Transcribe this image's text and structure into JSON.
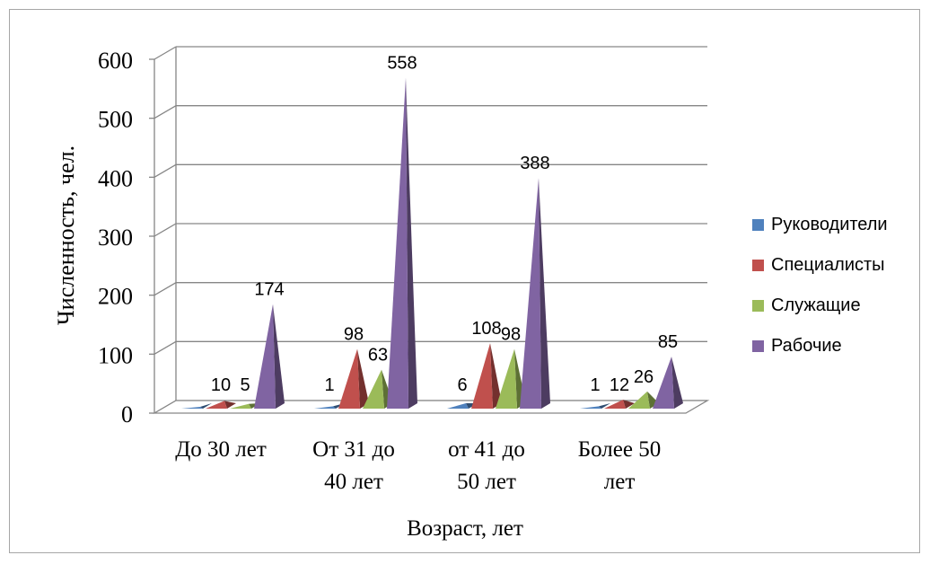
{
  "chart_data": {
    "type": "bar",
    "bar_shape": "pyramid-3d",
    "categories": [
      "До 30 лет",
      "От 31 до 40 лет",
      "от 41 до 50 лет",
      "Более 50 лет"
    ],
    "series": [
      {
        "name": "Руководители",
        "color": "#4f81bd",
        "values": [
          0,
          1,
          6,
          1
        ],
        "labels": [
          "",
          "1",
          "6",
          "1"
        ]
      },
      {
        "name": "Специалисты",
        "color": "#c0504d",
        "values": [
          10,
          98,
          108,
          12
        ],
        "labels": [
          "10",
          "98",
          "108",
          "12"
        ]
      },
      {
        "name": "Служащие",
        "color": "#9bbb59",
        "values": [
          5,
          63,
          98,
          26
        ],
        "labels": [
          "5",
          "63",
          "98",
          "26"
        ]
      },
      {
        "name": "Рабочие",
        "color": "#8064a2",
        "values": [
          174,
          558,
          388,
          85
        ],
        "labels": [
          "174",
          "558",
          "388",
          "85"
        ]
      }
    ],
    "xlabel": "Возраст, лет",
    "ylabel": "Численность, чел.",
    "ylim": [
      0,
      600
    ],
    "yticks": [
      0,
      100,
      200,
      300,
      400,
      500,
      600
    ],
    "grid": true,
    "legend_position": "right"
  }
}
